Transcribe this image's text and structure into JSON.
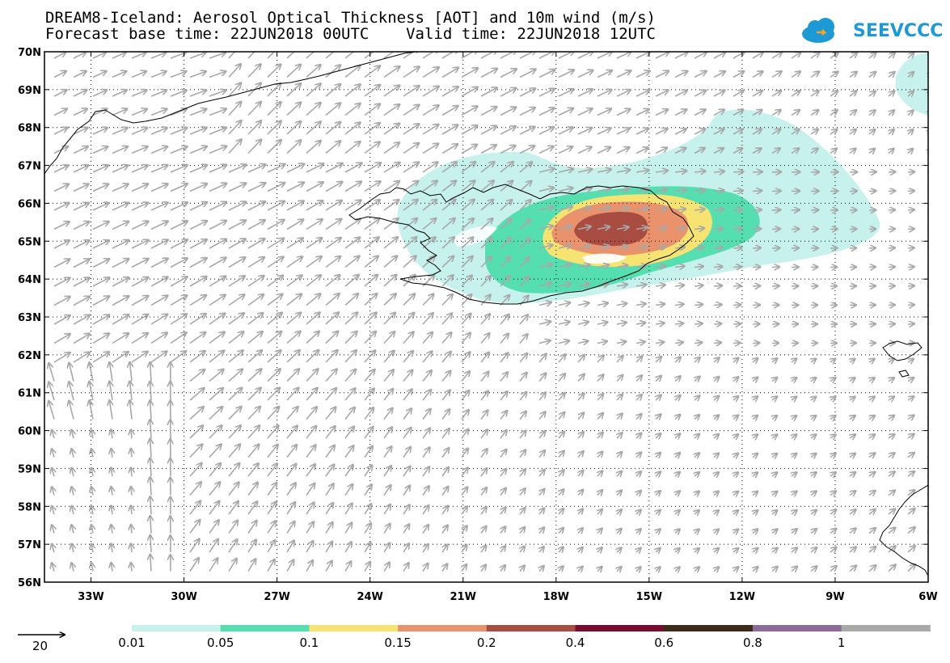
{
  "title": {
    "line1": "DREAM8-Iceland: Aerosol Optical Thickness [AOT] and 10m wind (m/s)",
    "line2": "Forecast base time: 22JUN2018 00UTC    Valid time: 22JUN2018 12UTC"
  },
  "logo": {
    "text": "SEEVCCC",
    "icon": "cloud-icon",
    "color": "#1d9ad6"
  },
  "map": {
    "lat_labels": [
      "70N",
      "69N",
      "68N",
      "67N",
      "66N",
      "65N",
      "64N",
      "63N",
      "62N",
      "61N",
      "60N",
      "59N",
      "58N",
      "57N",
      "56N"
    ],
    "lon_labels": [
      "33W",
      "30W",
      "27W",
      "24W",
      "21W",
      "18W",
      "15W",
      "12W",
      "9W",
      "6W"
    ],
    "wind_arrow_color": "#a8a8a8",
    "coastline_color": "#000000"
  },
  "legend": {
    "reference_vector": "20",
    "labels": [
      "0.01",
      "0.05",
      "0.1",
      "0.15",
      "0.2",
      "0.4",
      "0.6",
      "0.8",
      "1"
    ],
    "colors": [
      "#c6f1ec",
      "#55dfb0",
      "#f6e372",
      "#e9926b",
      "#a94d42",
      "#7a0a2e",
      "#3d2b1a",
      "#8c6a9a",
      "#a9a9a9"
    ]
  }
}
